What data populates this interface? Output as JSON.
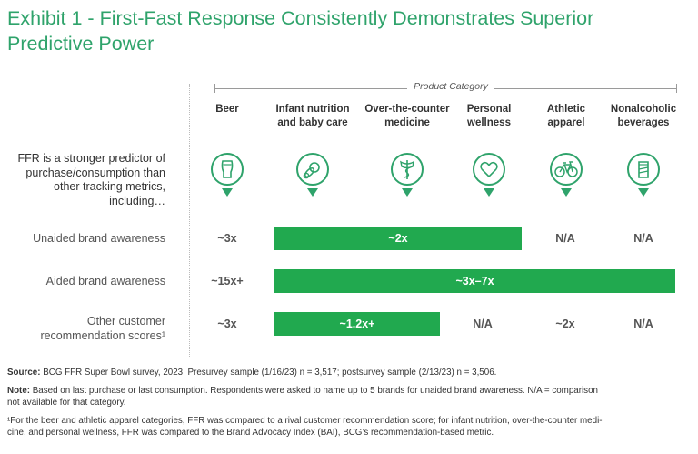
{
  "title": {
    "line1": "Exhibit 1 - First-Fast Response Consistently Demonstrates Superior",
    "line2": "Predictive Power"
  },
  "category_header": "Product Category",
  "columns": [
    {
      "line1": "Beer",
      "line2": "",
      "icon": "beer-glass-icon"
    },
    {
      "line1": "Infant nutrition",
      "line2": "and baby care",
      "icon": "pacifier-icon"
    },
    {
      "line1": "Over-the-counter",
      "line2": "medicine",
      "icon": "caduceus-icon"
    },
    {
      "line1": "Personal",
      "line2": "wellness",
      "icon": "heart-icon"
    },
    {
      "line1": "Athletic",
      "line2": "apparel",
      "icon": "bicycle-icon"
    },
    {
      "line1": "Nonalcoholic",
      "line2": "beverages",
      "icon": "soda-can-icon"
    }
  ],
  "intro": {
    "line1": "FFR is a stronger predictor of",
    "line2": "purchase/consumption than",
    "line3": "other tracking metrics,",
    "line4": "including…"
  },
  "colors": {
    "accent": "#2fa36b",
    "bar": "#21a94f"
  },
  "chart_data": {
    "type": "table",
    "title": "First-Fast Response Consistently Demonstrates Superior Predictive Power",
    "columns": [
      "Beer",
      "Infant nutrition and baby care",
      "Over-the-counter medicine",
      "Personal wellness",
      "Athletic apparel",
      "Nonalcoholic beverages"
    ],
    "rows": [
      {
        "label_line1": "Unaided brand awareness",
        "label_line2": "",
        "cells": [
          {
            "text": "~3x",
            "span": 1,
            "bar": false
          },
          {
            "text": "~2x",
            "span": 3,
            "bar": true
          },
          {
            "text": "N/A",
            "span": 1,
            "bar": false
          },
          {
            "text": "N/A",
            "span": 1,
            "bar": false
          }
        ]
      },
      {
        "label_line1": "Aided brand awareness",
        "label_line2": "",
        "cells": [
          {
            "text": "~15x+",
            "span": 1,
            "bar": false
          },
          {
            "text": "~3x–7x",
            "span": 5,
            "bar": true
          }
        ]
      },
      {
        "label_line1": "Other customer",
        "label_line2": "recommendation scores¹",
        "cells": [
          {
            "text": "~3x",
            "span": 1,
            "bar": false
          },
          {
            "text": "~1.2x+",
            "span": 2,
            "bar": true
          },
          {
            "text": "N/A",
            "span": 1,
            "bar": false
          },
          {
            "text": "~2x",
            "span": 1,
            "bar": false
          },
          {
            "text": "N/A",
            "span": 1,
            "bar": false
          }
        ]
      }
    ]
  },
  "footnotes": {
    "source_label": "Source:",
    "source_text": " BCG FFR Super Bowl survey, 2023. Presurvey sample (1/16/23) n = 3,517; postsurvey sample (2/13/23) n = 3,506.",
    "note_label": "Note:",
    "note_line1": " Based on last purchase or last consumption. Respondents were asked to name up to 5 brands for unaided brand awareness. N/A = comparison",
    "note_line2": "not available for that category.",
    "fn1_line1": "¹For the beer and athletic apparel categories, FFR was compared to a rival customer recommendation score; for infant nutrition, over-the-counter medi-",
    "fn1_line2": "cine, and personal wellness, FFR was compared to the Brand Advocacy Index (BAI), BCG’s recommendation-based metric."
  }
}
